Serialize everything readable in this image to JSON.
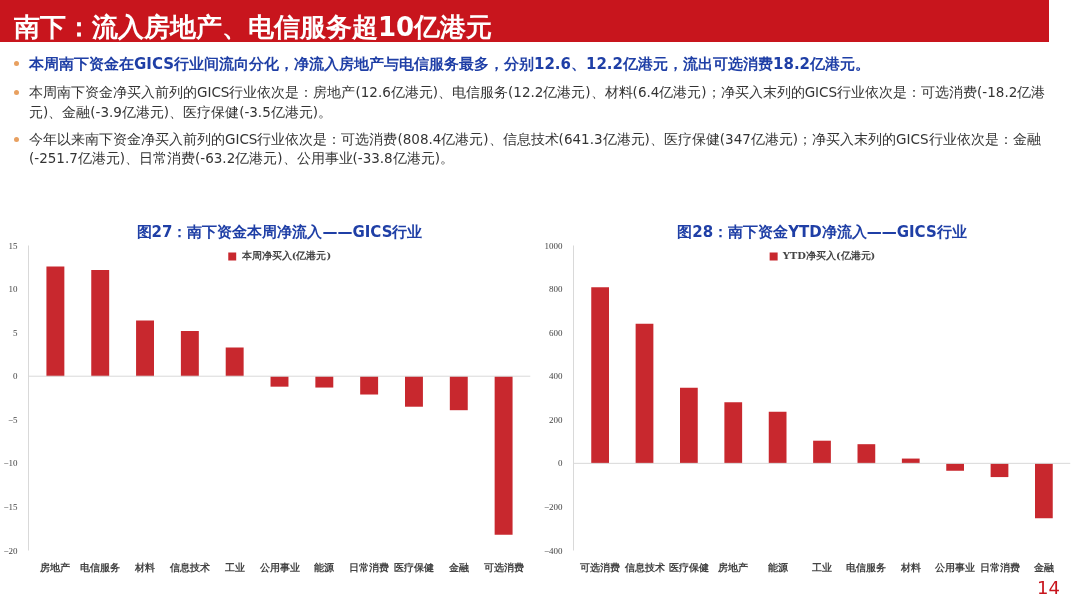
{
  "chart_data": [
    {
      "type": "other",
      "title": "南下：流入房地产、电信服务超10亿港元",
      "annotations": [
        "本周南下资金在GICS行业间流向分化，净流入房地产与电信服务最多，分别12.6、12.2亿港元，流出可选消费18.2亿港元。",
        "本周南下资金净买入前列的GICS行业依次是：房地产(12.6亿港元)、电信服务(12.2亿港元)、材料(6.4亿港元)；净买入末列的GICS行业依次是：可选消费(-18.2亿港元)、金融(-3.9亿港元)、医疗保健(-3.5亿港元)。",
        "今年以来南下资金净买入前列的GICS行业依次是：可选消费(808.4亿港元)、信息技术(641.3亿港元)、医疗保健(347亿港元)；净买入末列的GICS行业依次是：金融(-251.7亿港元)、日常消费(-63.2亿港元)、公用事业(-33.8亿港元)。",
        "14"
      ]
    },
    {
      "type": "bar",
      "title": "图27：南下资金本周净流入——GICS行业",
      "categories": [
        "房地产",
        "电信服务",
        "材料",
        "信息技术",
        "工业",
        "公用事业",
        "能源",
        "日常消费",
        "医疗保健",
        "金融",
        "可选消费"
      ],
      "series": [
        {
          "name": "本周净买入(亿港元)",
          "color": "#c8282e",
          "values": [
            12.6,
            12.2,
            6.4,
            5.2,
            3.3,
            -1.2,
            -1.3,
            -2.1,
            -3.5,
            -3.9,
            -18.2
          ]
        }
      ],
      "ylim": [
        -20,
        15
      ],
      "yticks": [
        -20,
        -15,
        -10,
        -5,
        0,
        5,
        10,
        15
      ],
      "grid": false,
      "legend": "top",
      "ref_lines": [
        {
          "axis": "y",
          "value": 0,
          "color": "#d9d9d9"
        }
      ]
    },
    {
      "type": "bar",
      "title": "图28：南下资金YTD净流入——GICS行业",
      "categories": [
        "可选消费",
        "信息技术",
        "医疗保健",
        "房地产",
        "能源",
        "工业",
        "电信服务",
        "材料",
        "公用事业",
        "日常消费",
        "金融"
      ],
      "series": [
        {
          "name": "YTD净买入(亿港元)",
          "color": "#c8282e",
          "values": [
            808,
            641,
            347,
            280,
            237,
            104,
            88,
            22,
            -34,
            -63,
            -252
          ]
        }
      ],
      "ylim": [
        -400,
        1000
      ],
      "yticks": [
        -400,
        -200,
        0,
        200,
        400,
        600,
        800,
        1000
      ],
      "grid": false,
      "legend": "top",
      "ref_lines": [
        {
          "axis": "y",
          "value": 0,
          "color": "#d9d9d9"
        }
      ]
    }
  ]
}
